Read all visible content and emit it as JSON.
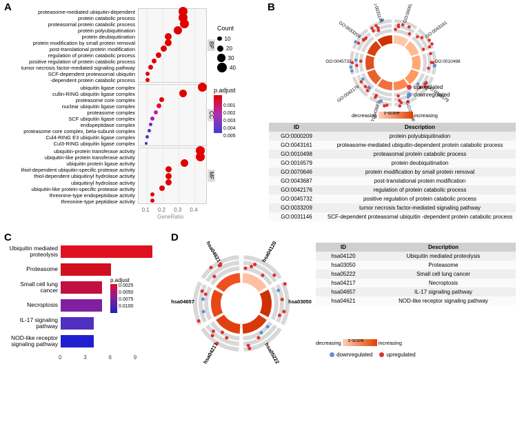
{
  "labels": {
    "A": "A",
    "B": "B",
    "C": "C",
    "D": "D"
  },
  "colors": {
    "upreg": "#e03030",
    "downreg": "#6090d0",
    "red": "#e00000",
    "blue": "#2020d0"
  },
  "panelA": {
    "x_label": "GeneRatio",
    "x_ticks": [
      "0.1",
      "0.2",
      "0.3",
      "0.4"
    ],
    "count_legend": {
      "title": "Count",
      "sizes": [
        10,
        20,
        30,
        40
      ]
    },
    "padj_legend": {
      "title": "p.adjust",
      "ticks": [
        "0.001",
        "0.002",
        "0.003",
        "0.004",
        "0.005"
      ]
    },
    "facets": [
      {
        "name": "BP",
        "items": [
          {
            "label": "proteasome-mediated ubiquitin-dependent",
            "x": 0.33,
            "size": 13,
            "color": "#e00000"
          },
          {
            "label": "protein catabolic process",
            "x": 0.33,
            "size": 13,
            "color": "#e00000"
          },
          {
            "label": "proteasomal protein catabolic process",
            "x": 0.34,
            "size": 13,
            "color": "#e00000"
          },
          {
            "label": "protein polyubiquitination",
            "x": 0.3,
            "size": 12,
            "color": "#e00000"
          },
          {
            "label": "protein deubiquitination",
            "x": 0.24,
            "size": 10,
            "color": "#e00000"
          },
          {
            "label": "protein modification by small protein removal",
            "x": 0.24,
            "size": 10,
            "color": "#e00000"
          },
          {
            "label": "post-translational protein modification",
            "x": 0.21,
            "size": 9,
            "color": "#e00000"
          },
          {
            "label": "regulation of protein catabolic process",
            "x": 0.18,
            "size": 8,
            "color": "#e00000"
          },
          {
            "label": "positive regulation of protein catabolic process",
            "x": 0.15,
            "size": 7,
            "color": "#e00000"
          },
          {
            "label": "tumor necrosis factor-mediated signaling pathway",
            "x": 0.13,
            "size": 7,
            "color": "#e00000"
          },
          {
            "label": "SCF-dependent proteasomal ubiquitin",
            "x": 0.11,
            "size": 6,
            "color": "#e00000"
          },
          {
            "label": "-dependent protein catabolic process",
            "x": 0.11,
            "size": 6,
            "color": "#e00000"
          }
        ]
      },
      {
        "name": "CC",
        "items": [
          {
            "label": "ubiquitin ligase complex",
            "x": 0.45,
            "size": 13,
            "color": "#e00000"
          },
          {
            "label": "cullin-RING ubiquitin ligase complex",
            "x": 0.33,
            "size": 11,
            "color": "#e00000"
          },
          {
            "label": "proteasome core complex",
            "x": 0.2,
            "size": 7,
            "color": "#e00000"
          },
          {
            "label": "nuclear ubiquitin ligase complex",
            "x": 0.18,
            "size": 7,
            "color": "#e01040"
          },
          {
            "label": "proteasome complex",
            "x": 0.16,
            "size": 6,
            "color": "#c020a0"
          },
          {
            "label": "SCF ubiquitin ligase complex",
            "x": 0.14,
            "size": 6,
            "color": "#a020b0"
          },
          {
            "label": "endopeptidase complex",
            "x": 0.13,
            "size": 5,
            "color": "#8020b0"
          },
          {
            "label": "proteasome core complex, beta-subunit complex",
            "x": 0.12,
            "size": 5,
            "color": "#6030c0"
          },
          {
            "label": "Cul4-RING E3 ubiquitin ligase complex",
            "x": 0.11,
            "size": 5,
            "color": "#5030c0"
          },
          {
            "label": "Cul3-RING ubiquitin ligase complex",
            "x": 0.1,
            "size": 4,
            "color": "#3030d0"
          }
        ]
      },
      {
        "name": "MF",
        "items": [
          {
            "label": "ubiquitin-protein transferase activity",
            "x": 0.44,
            "size": 13,
            "color": "#e00000"
          },
          {
            "label": "ubiquitin-like protein transferase activity",
            "x": 0.44,
            "size": 13,
            "color": "#e00000"
          },
          {
            "label": "ubiquitin protein ligase activity",
            "x": 0.34,
            "size": 11,
            "color": "#e00000"
          },
          {
            "label": "thiol-dependent ubiquitin-specific protease activity",
            "x": 0.24,
            "size": 9,
            "color": "#e00000"
          },
          {
            "label": "thiol-dependent ubiquitinyl hydrolase activity",
            "x": 0.24,
            "size": 9,
            "color": "#e00000"
          },
          {
            "label": "ubiquitinyl hydrolase activity",
            "x": 0.24,
            "size": 9,
            "color": "#e00000"
          },
          {
            "label": "ubiquitin-like protein-specific protease activity",
            "x": 0.2,
            "size": 8,
            "color": "#e00000"
          },
          {
            "label": "threonine-type endopeptidase activity",
            "x": 0.14,
            "size": 6,
            "color": "#e00000"
          },
          {
            "label": "threonine-type peptidase activity",
            "x": 0.14,
            "size": 6,
            "color": "#e00000"
          }
        ]
      }
    ]
  },
  "panelB": {
    "legend": {
      "up": "upregulated",
      "down": "downregulated"
    },
    "zscore": {
      "dec": "decreasing",
      "mid": "z-score",
      "inc": "increasing"
    },
    "go_ids": [
      "GO:0000209",
      "GO:0043161",
      "GO:0010498",
      "GO:0016579",
      "GO:0070646",
      "GO:0043687",
      "GO:0042176",
      "GO:0045732",
      "GO:0033209",
      "GO:0031146"
    ],
    "table": {
      "headers": [
        "ID",
        "Description"
      ],
      "rows": [
        [
          "GO:0000209",
          "protein polyubiquitination"
        ],
        [
          "GO:0043161",
          "proteasome-mediated ubiquitin-dependent protein catabolic process"
        ],
        [
          "GO:0010498",
          "proteasomal protein catabolic process"
        ],
        [
          "GO:0016579",
          "protein deubiquitination"
        ],
        [
          "GO:0070646",
          "protein modification by small protein removal"
        ],
        [
          "GO:0043687",
          "post-translational protein modification"
        ],
        [
          "GO:0042176",
          "regulation of protein catabolic process"
        ],
        [
          "GO:0045732",
          "positive regulation of protein catabolic process"
        ],
        [
          "GO:0033209",
          "tumor necrosis factor-mediated signaling pathway"
        ],
        [
          "GO:0031146",
          "SCF-dependent proteasomal ubiquitin -dependent protein catabolic process"
        ]
      ]
    }
  },
  "panelC": {
    "padj_legend": {
      "title": "p.adjust",
      "ticks": [
        "0.0025",
        "0.0050",
        "0.0075",
        "0.0100"
      ]
    },
    "x_ticks": [
      "0",
      "3",
      "6",
      "9"
    ],
    "bars": [
      {
        "label": "Ubiquitin mediated proteolysis",
        "value": 11,
        "color": "#e01020"
      },
      {
        "label": "Proteasome",
        "value": 6,
        "color": "#d01020"
      },
      {
        "label": "Small cell lung cancer",
        "value": 5,
        "color": "#c01040"
      },
      {
        "label": "Necroptosis",
        "value": 5,
        "color": "#8020a0"
      },
      {
        "label": "IL-17 signaling pathway",
        "value": 4,
        "color": "#5030c0"
      },
      {
        "label": "NOD-like receptor signaling pathway",
        "value": 4,
        "color": "#2020d0"
      }
    ]
  },
  "panelD": {
    "hsa_ids": [
      "hsa04120",
      "hsa03050",
      "hsa05222",
      "hsa04217",
      "hsa04657",
      "hsa04621"
    ],
    "zscore": {
      "dec": "decreasing",
      "mid": "z-score",
      "inc": "increasing"
    },
    "legend": {
      "down": "downregulated",
      "up": "upregulated"
    },
    "table": {
      "headers": [
        "ID",
        "Description"
      ],
      "rows": [
        [
          "hsa04120",
          "Ubiquitin mediated proteolysis"
        ],
        [
          "hsa03050",
          "Proteasome"
        ],
        [
          "hsa05222",
          "Small cell lung cancer"
        ],
        [
          "hsa04217",
          "Necroptosis"
        ],
        [
          "hsa04657",
          "IL-17 signaling pathway"
        ],
        [
          "hsa04621",
          "NOD-like receptor signaling pathway"
        ]
      ]
    }
  }
}
